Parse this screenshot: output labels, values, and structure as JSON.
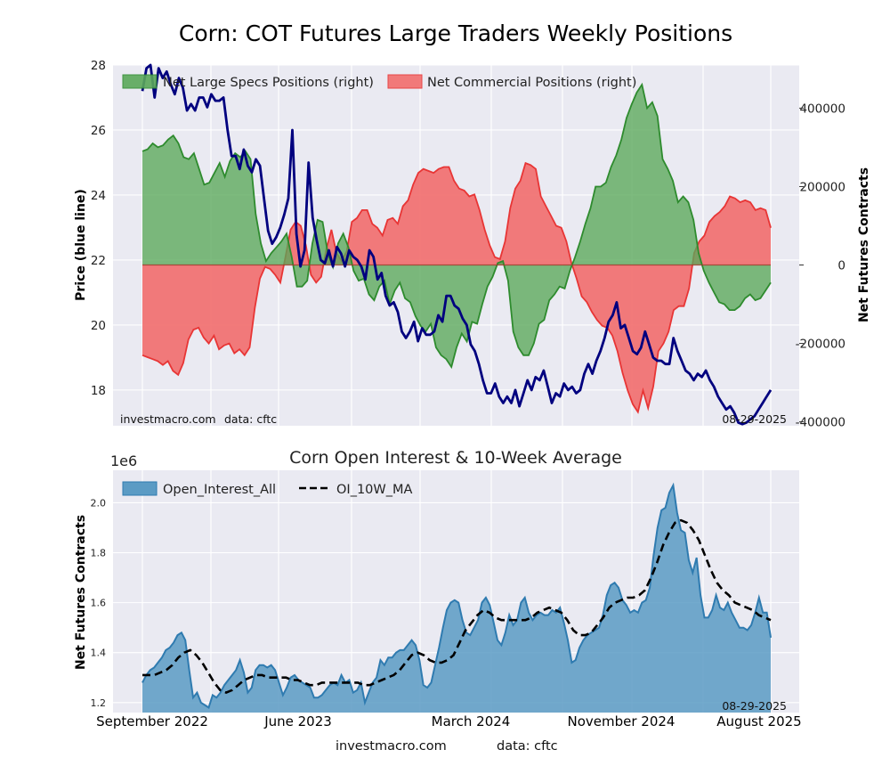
{
  "page": {
    "title": "Corn: COT Futures Large Traders Weekly Positions",
    "footer_left": "investmacro.com",
    "footer_right": "data: cftc"
  },
  "colors": {
    "panel_bg": "#eaeaf2",
    "price_line": "#00007f",
    "specs_fill": "#5aa85a",
    "specs_line": "#2e8b2e",
    "comm_fill": "#f26d6d",
    "comm_line": "#e83535",
    "oi_fill": "#5b9bc4",
    "oi_line": "#2f7bb0",
    "ma_line": "#000000"
  },
  "chart_data": [
    {
      "type": "line",
      "title": "Corn: COT Futures Large Traders Weekly Positions",
      "ylabel_left": "Price (blue line)",
      "ylabel_right": "Net Futures Contracts",
      "ylim_left": [
        16.9,
        28
      ],
      "ylim_right": [
        -410000,
        510000
      ],
      "yticks_left": [
        18,
        20,
        22,
        24,
        26,
        28
      ],
      "yticks_right": [
        {
          "value": 400000,
          "label": "400000"
        },
        {
          "value": 200000,
          "label": "200000"
        },
        {
          "value": 0,
          "label": "0"
        },
        {
          "value": -200000,
          "label": "-200000"
        },
        {
          "value": -400000,
          "label": "-400000"
        }
      ],
      "watermark": "investmacro.com",
      "source": "data: cftc",
      "date_label": "08-29-2025",
      "legend": [
        {
          "name": "Net Large Specs Positions (right)",
          "color_key": "specs"
        },
        {
          "name": "Net Commercial Positions (right)",
          "color_key": "comm"
        }
      ],
      "price_series": {
        "name": "Price (blue line)",
        "x": [
          0,
          1,
          2,
          3,
          4,
          5,
          6,
          7,
          8,
          9,
          10,
          11,
          12,
          13,
          14,
          15,
          16,
          17,
          18,
          19,
          20,
          21,
          22,
          23,
          24,
          25,
          26,
          27,
          28,
          29,
          30,
          31,
          32,
          33,
          34,
          35,
          36,
          37,
          38,
          39,
          40,
          41,
          42,
          43,
          44,
          45,
          46,
          47,
          48,
          49,
          50,
          51,
          52,
          53,
          54,
          55,
          56,
          57,
          58,
          59,
          60,
          61,
          62,
          63,
          64,
          65,
          66,
          67,
          68,
          69,
          70,
          71,
          72,
          73,
          74,
          75,
          76,
          77,
          78,
          79,
          80,
          81,
          82,
          83,
          84,
          85,
          86,
          87,
          88,
          89,
          90,
          91,
          92,
          93,
          94,
          95,
          96,
          97,
          98,
          99,
          100,
          101,
          102,
          103,
          104,
          105,
          106,
          107,
          108,
          109,
          110,
          111,
          112,
          113,
          114,
          115,
          116,
          117,
          118,
          119,
          120,
          121,
          122,
          123,
          124,
          125,
          126,
          127,
          128,
          129,
          130,
          131,
          132,
          133,
          134,
          135,
          136,
          137,
          138,
          139,
          140,
          141,
          142,
          143,
          144,
          145,
          146,
          147,
          148,
          149,
          150,
          151,
          152,
          153,
          154,
          155
        ],
        "values": [
          27.2,
          27.9,
          28.0,
          27.0,
          27.9,
          27.6,
          27.8,
          27.4,
          27.1,
          27.6,
          27.3,
          26.6,
          26.8,
          26.6,
          27.0,
          27.0,
          26.7,
          27.1,
          26.9,
          26.9,
          27.0,
          26.0,
          25.2,
          25.2,
          24.8,
          25.4,
          24.9,
          24.7,
          25.1,
          24.9,
          23.9,
          22.9,
          22.5,
          22.7,
          23.0,
          23.4,
          23.9,
          26.0,
          22.8,
          21.8,
          22.3,
          25.0,
          23.3,
          22.6,
          22.0,
          21.9,
          22.3,
          21.8,
          22.4,
          22.2,
          21.8,
          22.3,
          22.1,
          22.0,
          21.8,
          21.4,
          22.3,
          22.1,
          21.4,
          21.6,
          20.9,
          20.6,
          20.7,
          20.4,
          19.8,
          19.6,
          19.8,
          20.1,
          19.5,
          19.9,
          19.7,
          19.7,
          19.8,
          20.3,
          20.1,
          20.9,
          20.9,
          20.6,
          20.5,
          20.2,
          20.0,
          19.4,
          19.2,
          18.8,
          18.3,
          17.9,
          17.9,
          18.2,
          17.8,
          17.6,
          17.8,
          17.6,
          18.0,
          17.5,
          17.9,
          18.3,
          18.0,
          18.4,
          18.3,
          18.6,
          18.1,
          17.6,
          17.9,
          17.8,
          18.2,
          18.0,
          18.1,
          17.9,
          18.0,
          18.5,
          18.8,
          18.5,
          18.9,
          19.2,
          19.6,
          20.1,
          20.3,
          20.7,
          19.9,
          20.0,
          19.6,
          19.2,
          19.1,
          19.3,
          19.8,
          19.4,
          19.0,
          18.9,
          18.9,
          18.8,
          18.8,
          19.6,
          19.2,
          18.9,
          18.6,
          18.5,
          18.3,
          18.5,
          18.4,
          18.6,
          18.3,
          18.1,
          17.8,
          17.6,
          17.4,
          17.5,
          17.3,
          17.0,
          16.95,
          17.0,
          17.1,
          17.2,
          17.4,
          17.6,
          17.8,
          18.0
        ]
      },
      "net_specs": {
        "name": "Net Large Specs Positions (right)",
        "values": [
          290000,
          295000,
          310000,
          300000,
          305000,
          320000,
          330000,
          310000,
          275000,
          270000,
          285000,
          245000,
          205000,
          210000,
          235000,
          260000,
          225000,
          265000,
          285000,
          275000,
          290000,
          270000,
          130000,
          55000,
          10000,
          30000,
          45000,
          60000,
          80000,
          20000,
          -55000,
          -55000,
          -40000,
          55000,
          115000,
          110000,
          30000,
          -5000,
          55000,
          80000,
          45000,
          -15000,
          -40000,
          -35000,
          -75000,
          -90000,
          -55000,
          -40000,
          -100000,
          -65000,
          -45000,
          -85000,
          -95000,
          -130000,
          -155000,
          -170000,
          -150000,
          -210000,
          -230000,
          -240000,
          -260000,
          -210000,
          -175000,
          -195000,
          -145000,
          -150000,
          -100000,
          -55000,
          -30000,
          5000,
          10000,
          -40000,
          -170000,
          -210000,
          -230000,
          -230000,
          -200000,
          -150000,
          -140000,
          -90000,
          -75000,
          -55000,
          -60000,
          -15000,
          20000,
          60000,
          105000,
          145000,
          200000,
          200000,
          210000,
          250000,
          280000,
          320000,
          375000,
          410000,
          440000,
          460000,
          400000,
          415000,
          380000,
          270000,
          245000,
          215000,
          160000,
          175000,
          160000,
          115000,
          30000,
          -15000,
          -45000,
          -70000,
          -95000,
          -100000,
          -115000,
          -115000,
          -105000,
          -85000,
          -75000,
          -90000,
          -85000,
          -65000,
          -45000
        ],
        "x_start": 0,
        "x_step": 1.3
      },
      "net_comm": {
        "name": "Net Commercial Positions (right)",
        "values": [
          -230000,
          -235000,
          -240000,
          -245000,
          -255000,
          -245000,
          -270000,
          -280000,
          -250000,
          -190000,
          -165000,
          -160000,
          -185000,
          -200000,
          -180000,
          -215000,
          -205000,
          -200000,
          -225000,
          -215000,
          -230000,
          -210000,
          -110000,
          -35000,
          -5000,
          -10000,
          -25000,
          -45000,
          20000,
          90000,
          110000,
          100000,
          50000,
          -25000,
          -45000,
          -30000,
          40000,
          90000,
          30000,
          10000,
          35000,
          110000,
          120000,
          140000,
          140000,
          105000,
          95000,
          75000,
          115000,
          120000,
          105000,
          150000,
          165000,
          205000,
          235000,
          245000,
          240000,
          235000,
          245000,
          250000,
          250000,
          215000,
          195000,
          190000,
          175000,
          180000,
          140000,
          90000,
          50000,
          20000,
          15000,
          60000,
          145000,
          195000,
          215000,
          260000,
          255000,
          245000,
          175000,
          150000,
          125000,
          100000,
          95000,
          60000,
          5000,
          -35000,
          -80000,
          -95000,
          -120000,
          -140000,
          -155000,
          -160000,
          -180000,
          -220000,
          -275000,
          -320000,
          -355000,
          -375000,
          -320000,
          -365000,
          -310000,
          -220000,
          -200000,
          -170000,
          -115000,
          -105000,
          -105000,
          -60000,
          30000,
          60000,
          75000,
          110000,
          125000,
          135000,
          150000,
          175000,
          170000,
          160000,
          165000,
          160000,
          140000,
          145000,
          140000,
          95000
        ],
        "x_start": 0,
        "x_step": 1.3
      }
    },
    {
      "type": "area",
      "title": "Corn Open Interest & 10-Week Average",
      "ylabel": "Net Futures Contracts",
      "y_exponent_label": "1e6",
      "ylim": [
        1.16,
        2.13
      ],
      "yticks": [
        {
          "value": 1.2,
          "label": "1.2"
        },
        {
          "value": 1.4,
          "label": "1.4"
        },
        {
          "value": 1.6,
          "label": "1.6"
        },
        {
          "value": 1.8,
          "label": "1.8"
        },
        {
          "value": 2.0,
          "label": "2.0"
        }
      ],
      "date_label": "08-29-2025",
      "x_tick_labels": [
        "September 2022",
        "June 2023",
        "March 2024",
        "November 2024",
        "August 2025"
      ],
      "legend": [
        {
          "name": "Open_Interest_All",
          "color_key": "oi"
        },
        {
          "name": "OI_10W_MA",
          "color_key": "ma"
        }
      ],
      "open_interest": {
        "name": "Open_Interest_All",
        "values": [
          1.28,
          1.31,
          1.33,
          1.34,
          1.36,
          1.38,
          1.41,
          1.42,
          1.44,
          1.47,
          1.48,
          1.45,
          1.33,
          1.22,
          1.24,
          1.2,
          1.19,
          1.18,
          1.23,
          1.22,
          1.24,
          1.27,
          1.29,
          1.31,
          1.33,
          1.37,
          1.32,
          1.24,
          1.26,
          1.33,
          1.35,
          1.35,
          1.34,
          1.35,
          1.33,
          1.28,
          1.23,
          1.26,
          1.3,
          1.31,
          1.29,
          1.28,
          1.27,
          1.26,
          1.22,
          1.22,
          1.23,
          1.25,
          1.27,
          1.28,
          1.27,
          1.31,
          1.28,
          1.29,
          1.24,
          1.25,
          1.28,
          1.2,
          1.24,
          1.28,
          1.3,
          1.37,
          1.35,
          1.38,
          1.38,
          1.4,
          1.41,
          1.41,
          1.43,
          1.45,
          1.43,
          1.37,
          1.27,
          1.26,
          1.28,
          1.35,
          1.42,
          1.5,
          1.57,
          1.6,
          1.61,
          1.6,
          1.53,
          1.48,
          1.47,
          1.5,
          1.53,
          1.6,
          1.62,
          1.59,
          1.52,
          1.45,
          1.43,
          1.48,
          1.55,
          1.51,
          1.53,
          1.6,
          1.62,
          1.56,
          1.53,
          1.55,
          1.56,
          1.55,
          1.55,
          1.57,
          1.56,
          1.58,
          1.52,
          1.45,
          1.36,
          1.37,
          1.42,
          1.45,
          1.47,
          1.48,
          1.49,
          1.5,
          1.55,
          1.63,
          1.67,
          1.68,
          1.66,
          1.61,
          1.59,
          1.56,
          1.57,
          1.56,
          1.6,
          1.61,
          1.66,
          1.79,
          1.9,
          1.97,
          1.98,
          2.04,
          2.07,
          1.96,
          1.89,
          1.88,
          1.77,
          1.72,
          1.78,
          1.63,
          1.54,
          1.54,
          1.57,
          1.63,
          1.58,
          1.57,
          1.6,
          1.56,
          1.53,
          1.5,
          1.5,
          1.49,
          1.51,
          1.56,
          1.62,
          1.56,
          1.56,
          1.46
        ],
        "x_start": 0,
        "x_step": 0.8818
      },
      "oi_10w_ma": {
        "name": "OI_10W_MA",
        "values": [
          1.31,
          1.31,
          1.31,
          1.32,
          1.33,
          1.35,
          1.38,
          1.4,
          1.41,
          1.39,
          1.36,
          1.32,
          1.28,
          1.25,
          1.24,
          1.25,
          1.27,
          1.29,
          1.3,
          1.31,
          1.31,
          1.3,
          1.3,
          1.3,
          1.3,
          1.29,
          1.29,
          1.28,
          1.27,
          1.27,
          1.28,
          1.28,
          1.28,
          1.28,
          1.28,
          1.28,
          1.28,
          1.27,
          1.27,
          1.28,
          1.29,
          1.3,
          1.31,
          1.33,
          1.36,
          1.39,
          1.4,
          1.39,
          1.37,
          1.36,
          1.36,
          1.37,
          1.39,
          1.44,
          1.49,
          1.52,
          1.55,
          1.57,
          1.56,
          1.54,
          1.53,
          1.53,
          1.53,
          1.53,
          1.53,
          1.54,
          1.56,
          1.57,
          1.58,
          1.57,
          1.56,
          1.53,
          1.49,
          1.47,
          1.47,
          1.48,
          1.51,
          1.54,
          1.58,
          1.6,
          1.61,
          1.62,
          1.62,
          1.63,
          1.65,
          1.7,
          1.76,
          1.83,
          1.88,
          1.92,
          1.93,
          1.92,
          1.89,
          1.85,
          1.79,
          1.73,
          1.68,
          1.65,
          1.63,
          1.6,
          1.59,
          1.58,
          1.57,
          1.55,
          1.54,
          1.53
        ],
        "x_start": 0,
        "x_step": 1.3
      }
    }
  ]
}
